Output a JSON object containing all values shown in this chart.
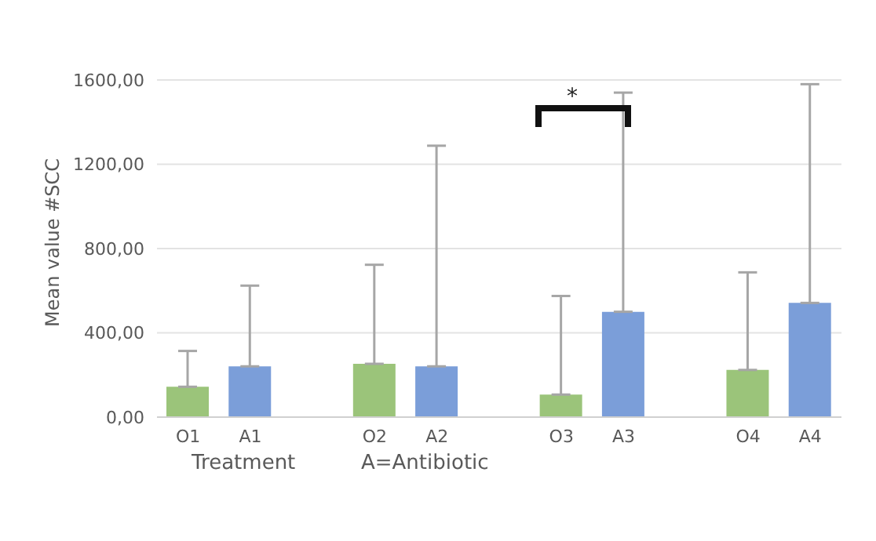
{
  "chart_data": {
    "type": "bar",
    "ylabel": "Mean value #SCC",
    "xlabel": "Treatment",
    "categories": [
      "O1",
      "A1",
      null,
      "O2",
      "A2",
      null,
      "O3",
      "A3",
      null,
      "O4",
      "A4"
    ],
    "values": [
      144,
      241,
      null,
      253,
      241,
      null,
      107,
      500,
      null,
      224,
      542
    ],
    "errors": [
      [
        144,
        314
      ],
      [
        241,
        624
      ],
      null,
      [
        253,
        723
      ],
      [
        241,
        1288
      ],
      null,
      [
        107,
        575
      ],
      [
        500,
        1540
      ],
      null,
      [
        224,
        687
      ],
      [
        542,
        1580
      ]
    ],
    "colors": [
      "#9bc47a",
      "#7b9ed9",
      null,
      "#9bc47a",
      "#7b9ed9",
      null,
      "#9bc47a",
      "#7b9ed9",
      null,
      "#9bc47a",
      "#7b9ed9"
    ],
    "ylim": [
      0,
      1600
    ],
    "yticks": [
      {
        "value": 0,
        "label": "0,00"
      },
      {
        "value": 400,
        "label": "400,00"
      },
      {
        "value": 800,
        "label": "800,00"
      },
      {
        "value": 1200,
        "label": "1200,00"
      },
      {
        "value": 1600,
        "label": "1600,00"
      }
    ],
    "grid": "y",
    "legend": false,
    "annotations": [
      "*",
      "A=Antibiotic"
    ]
  }
}
